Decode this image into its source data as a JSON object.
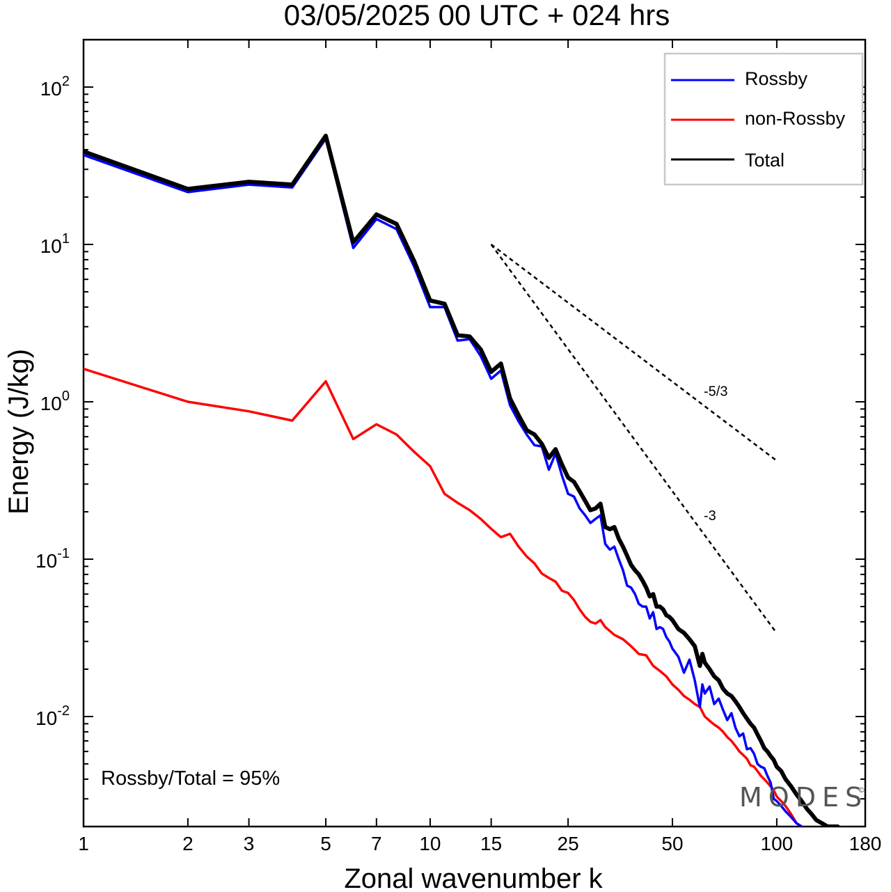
{
  "title": "03/05/2025  00 UTC  + 024 hrs",
  "watermark": "MODES",
  "watermark_mark": "©",
  "chart_data": {
    "type": "line",
    "title": "03/05/2025  00 UTC  + 024 hrs",
    "xlabel": "Zonal wavenumber k",
    "ylabel": "Energy (J/kg)",
    "xscale": "log",
    "yscale": "log",
    "xlim": [
      1,
      180
    ],
    "ylim": [
      0.002,
      200
    ],
    "x_ticks": [
      1,
      2,
      3,
      5,
      7,
      10,
      15,
      25,
      50,
      100,
      180
    ],
    "x_tick_labels": [
      "1",
      "2",
      "3",
      "5",
      "7",
      "10",
      "15",
      "25",
      "50",
      "100",
      "180"
    ],
    "y_ticks": [
      {
        "value": 100,
        "base": "10",
        "exp": "2"
      },
      {
        "value": 10,
        "base": "10",
        "exp": "1"
      },
      {
        "value": 1,
        "base": "10",
        "exp": "0"
      },
      {
        "value": 0.1,
        "base": "10",
        "exp": "-1"
      },
      {
        "value": 0.01,
        "base": "10",
        "exp": "-2"
      }
    ],
    "grid": false,
    "legend_position": "top-right",
    "series": [
      {
        "name": "Rossby",
        "color": "#0000ff",
        "x": [
          1,
          2,
          3,
          4,
          5,
          6,
          7,
          8,
          9,
          10,
          11,
          12,
          13,
          14,
          15,
          16,
          17,
          18,
          19,
          20,
          21,
          22,
          23,
          24,
          25,
          26,
          27,
          28,
          29,
          30,
          31,
          32,
          33,
          34,
          35,
          36,
          37,
          38,
          39,
          40,
          41,
          42,
          43,
          44,
          45,
          46,
          47,
          48,
          49,
          50,
          52,
          54,
          56,
          58,
          60,
          61,
          62,
          64,
          66,
          68,
          70,
          72,
          74,
          76,
          78,
          80,
          82,
          84,
          86,
          88,
          90,
          92,
          94,
          96,
          98,
          100,
          103,
          106,
          110,
          114,
          118
        ],
        "y": [
          37,
          21.5,
          24,
          23,
          47,
          9.5,
          14.5,
          12.5,
          7.2,
          4.0,
          4.0,
          2.45,
          2.5,
          1.95,
          1.4,
          1.58,
          0.95,
          0.75,
          0.62,
          0.53,
          0.52,
          0.37,
          0.47,
          0.34,
          0.26,
          0.25,
          0.21,
          0.19,
          0.17,
          0.18,
          0.19,
          0.125,
          0.115,
          0.12,
          0.1,
          0.085,
          0.068,
          0.066,
          0.06,
          0.052,
          0.05,
          0.05,
          0.042,
          0.046,
          0.036,
          0.037,
          0.036,
          0.032,
          0.03,
          0.027,
          0.024,
          0.019,
          0.023,
          0.017,
          0.0115,
          0.016,
          0.014,
          0.0155,
          0.012,
          0.013,
          0.011,
          0.0095,
          0.0105,
          0.0085,
          0.0075,
          0.0078,
          0.0062,
          0.0063,
          0.0058,
          0.005,
          0.0048,
          0.0047,
          0.0042,
          0.0038,
          0.003,
          0.0029,
          0.0027,
          0.0025,
          0.0023,
          0.0021,
          0.002
        ]
      },
      {
        "name": "non-Rossby",
        "color": "#ff0000",
        "x": [
          1,
          2,
          3,
          4,
          5,
          6,
          7,
          8,
          9,
          10,
          11,
          12,
          13,
          14,
          15,
          16,
          17,
          18,
          19,
          20,
          21,
          22,
          23,
          24,
          25,
          26,
          27,
          28,
          29,
          30,
          31,
          32,
          34,
          36,
          38,
          40,
          42,
          44,
          46,
          48,
          50,
          52,
          54,
          56,
          58,
          60,
          62,
          64,
          66,
          68,
          70,
          72,
          74,
          76,
          78,
          80,
          82,
          84,
          86,
          88,
          90,
          92,
          94,
          96,
          98,
          100,
          103,
          106,
          110,
          114,
          118
        ],
        "y": [
          1.62,
          1.0,
          0.87,
          0.76,
          1.35,
          0.58,
          0.72,
          0.62,
          0.48,
          0.39,
          0.26,
          0.228,
          0.205,
          0.18,
          0.156,
          0.138,
          0.145,
          0.12,
          0.104,
          0.094,
          0.081,
          0.076,
          0.072,
          0.063,
          0.061,
          0.055,
          0.048,
          0.043,
          0.04,
          0.039,
          0.041,
          0.037,
          0.033,
          0.031,
          0.028,
          0.025,
          0.0245,
          0.021,
          0.0195,
          0.018,
          0.016,
          0.0148,
          0.0135,
          0.0128,
          0.012,
          0.0115,
          0.01,
          0.0094,
          0.0089,
          0.0085,
          0.008,
          0.0074,
          0.007,
          0.0065,
          0.006,
          0.0057,
          0.0054,
          0.0049,
          0.0048,
          0.0045,
          0.0042,
          0.004,
          0.0038,
          0.0036,
          0.0034,
          0.0031,
          0.0029,
          0.0027,
          0.0024,
          0.0021,
          0.002
        ]
      },
      {
        "name": "Total",
        "color": "#000000",
        "x": [
          1,
          2,
          3,
          4,
          5,
          6,
          7,
          8,
          9,
          10,
          11,
          12,
          13,
          14,
          15,
          16,
          17,
          18,
          19,
          20,
          21,
          22,
          23,
          24,
          25,
          26,
          27,
          28,
          29,
          30,
          31,
          32,
          33,
          34,
          35,
          36,
          37,
          38,
          39,
          40,
          41,
          42,
          43,
          44,
          45,
          46,
          47,
          48,
          49,
          50,
          52,
          54,
          56,
          58,
          60,
          61,
          62,
          64,
          66,
          68,
          70,
          72,
          74,
          76,
          78,
          80,
          82,
          84,
          86,
          88,
          90,
          92,
          94,
          96,
          98,
          100,
          103,
          106,
          110,
          114,
          118,
          122,
          126,
          130,
          135,
          140,
          145,
          150
        ],
        "y": [
          39,
          22.5,
          25,
          24,
          49,
          10.3,
          15.5,
          13.5,
          7.8,
          4.4,
          4.2,
          2.65,
          2.6,
          2.15,
          1.55,
          1.75,
          1.05,
          0.82,
          0.66,
          0.62,
          0.54,
          0.44,
          0.5,
          0.4,
          0.33,
          0.31,
          0.27,
          0.235,
          0.205,
          0.21,
          0.225,
          0.16,
          0.155,
          0.16,
          0.135,
          0.12,
          0.105,
          0.092,
          0.085,
          0.08,
          0.073,
          0.066,
          0.058,
          0.06,
          0.05,
          0.05,
          0.048,
          0.044,
          0.043,
          0.041,
          0.036,
          0.034,
          0.031,
          0.028,
          0.021,
          0.025,
          0.022,
          0.02,
          0.018,
          0.017,
          0.015,
          0.014,
          0.0135,
          0.0125,
          0.0115,
          0.0105,
          0.0097,
          0.009,
          0.0085,
          0.0077,
          0.007,
          0.0063,
          0.006,
          0.0056,
          0.0053,
          0.0048,
          0.0045,
          0.004,
          0.0036,
          0.0032,
          0.0029,
          0.0026,
          0.0024,
          0.0022,
          0.0021,
          0.002,
          0.002,
          0.002
        ]
      }
    ],
    "reference_lines": [
      {
        "label": "-5/3",
        "slope": -1.6667,
        "x": [
          15,
          100
        ],
        "y": [
          10,
          0.422
        ]
      },
      {
        "label": "-3",
        "slope": -3,
        "x": [
          15,
          100
        ],
        "y": [
          10,
          0.0338
        ]
      }
    ],
    "annotations": [
      {
        "text": "Rossby/Total = 95%"
      }
    ]
  }
}
